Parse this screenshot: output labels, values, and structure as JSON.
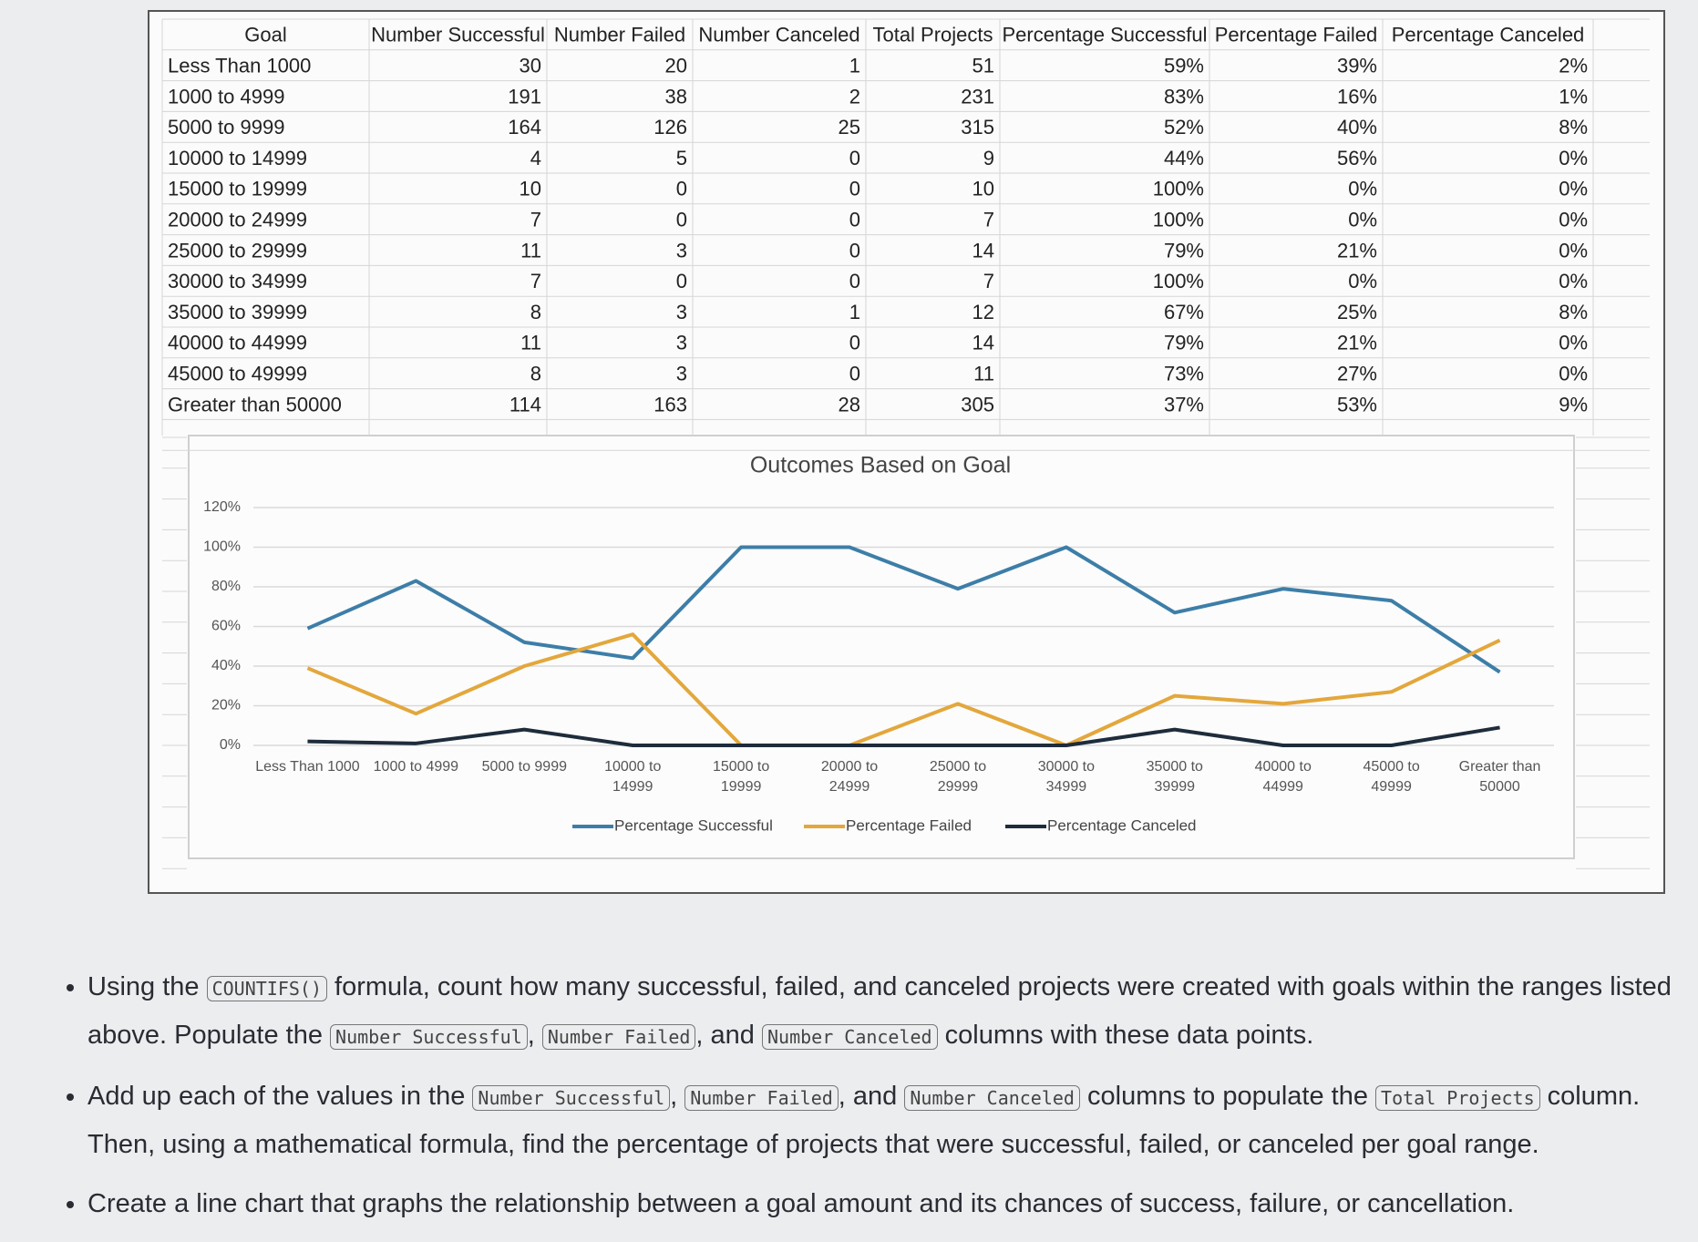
{
  "table": {
    "header": [
      "Goal",
      "Number Successful",
      "Number Failed",
      "Number Canceled",
      "Total Projects",
      "Percentage Successful",
      "Percentage Failed",
      "Percentage Canceled"
    ],
    "rows": [
      [
        "Less Than 1000",
        "30",
        "20",
        "1",
        "51",
        "59%",
        "39%",
        "2%"
      ],
      [
        "1000 to 4999",
        "191",
        "38",
        "2",
        "231",
        "83%",
        "16%",
        "1%"
      ],
      [
        "5000 to 9999",
        "164",
        "126",
        "25",
        "315",
        "52%",
        "40%",
        "8%"
      ],
      [
        "10000 to 14999",
        "4",
        "5",
        "0",
        "9",
        "44%",
        "56%",
        "0%"
      ],
      [
        "15000 to 19999",
        "10",
        "0",
        "0",
        "10",
        "100%",
        "0%",
        "0%"
      ],
      [
        "20000 to 24999",
        "7",
        "0",
        "0",
        "7",
        "100%",
        "0%",
        "0%"
      ],
      [
        "25000 to 29999",
        "11",
        "3",
        "0",
        "14",
        "79%",
        "21%",
        "0%"
      ],
      [
        "30000 to 34999",
        "7",
        "0",
        "0",
        "7",
        "100%",
        "0%",
        "0%"
      ],
      [
        "35000 to 39999",
        "8",
        "3",
        "1",
        "12",
        "67%",
        "25%",
        "8%"
      ],
      [
        "40000 to 44999",
        "11",
        "3",
        "0",
        "14",
        "79%",
        "21%",
        "0%"
      ],
      [
        "45000 to 49999",
        "8",
        "3",
        "0",
        "11",
        "73%",
        "27%",
        "0%"
      ],
      [
        "Greater than 50000",
        "114",
        "163",
        "28",
        "305",
        "37%",
        "53%",
        "9%"
      ]
    ]
  },
  "chart_data": {
    "type": "line",
    "title": "Outcomes Based on Goal",
    "categories": [
      "Less Than 1000",
      "1000 to 4999",
      "5000 to 9999",
      "10000 to 14999",
      "15000 to 19999",
      "20000 to 24999",
      "25000 to 29999",
      "30000 to 34999",
      "35000 to 39999",
      "40000 to 44999",
      "45000 to 49999",
      "Greater than 50000"
    ],
    "series": [
      {
        "name": "Percentage Successful",
        "color": "#3d7ea8",
        "values": [
          59,
          83,
          52,
          44,
          100,
          100,
          79,
          100,
          67,
          79,
          73,
          37
        ]
      },
      {
        "name": "Percentage Failed",
        "color": "#e3a73c",
        "values": [
          39,
          16,
          40,
          56,
          0,
          0,
          21,
          0,
          25,
          21,
          27,
          53
        ]
      },
      {
        "name": "Percentage Canceled",
        "color": "#1e2c3c",
        "values": [
          2,
          1,
          8,
          0,
          0,
          0,
          0,
          0,
          8,
          0,
          0,
          9
        ]
      }
    ],
    "ylim": [
      0,
      120
    ],
    "yticks": [
      {
        "value": 0,
        "label": "0%"
      },
      {
        "value": 20,
        "label": "20%"
      },
      {
        "value": 40,
        "label": "40%"
      },
      {
        "value": 60,
        "label": "60%"
      },
      {
        "value": 80,
        "label": "80%"
      },
      {
        "value": 100,
        "label": "100%"
      },
      {
        "value": 120,
        "label": "120%"
      }
    ],
    "grid": true,
    "legend": "bottom"
  },
  "instructions": [
    [
      {
        "text": "Using the "
      },
      {
        "code": "COUNTIFS()"
      },
      {
        "text": " formula, count how many successful, failed, and canceled projects were created with goals within the ranges listed above. Populate the "
      },
      {
        "code": "Number Successful"
      },
      {
        "text": ", "
      },
      {
        "code": "Number Failed"
      },
      {
        "text": ", and "
      },
      {
        "code": "Number Canceled"
      },
      {
        "text": " columns with these data points."
      }
    ],
    [
      {
        "text": "Add up each of the values in the "
      },
      {
        "code": "Number Successful"
      },
      {
        "text": ", "
      },
      {
        "code": "Number Failed"
      },
      {
        "text": ", and "
      },
      {
        "code": "Number Canceled"
      },
      {
        "text": " columns to populate the "
      },
      {
        "code": "Total Projects"
      },
      {
        "text": " column. Then, using a mathematical formula, find the percentage of projects that were successful, failed, or canceled per goal range."
      }
    ],
    [
      {
        "text": "Create a line chart that graphs the relationship between a goal amount and its chances of success, failure, or cancellation."
      }
    ]
  ]
}
